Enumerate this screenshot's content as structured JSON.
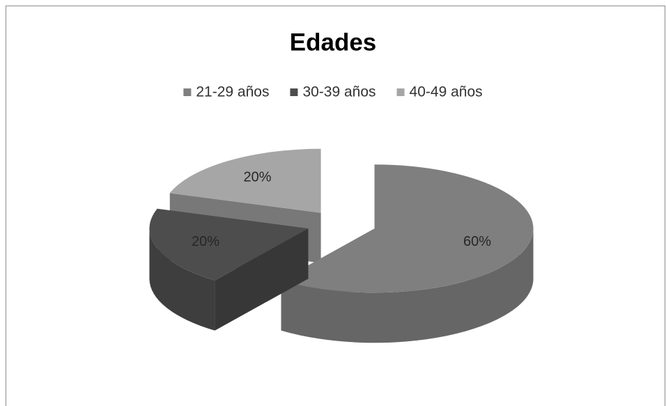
{
  "chart_data": {
    "type": "pie",
    "title": "Edades",
    "categories": [
      "21-29 años",
      "30-39 años",
      "40-49 años"
    ],
    "values": [
      60,
      20,
      20
    ],
    "value_labels": [
      "60%",
      "20%",
      "20%"
    ],
    "colors": [
      "#7f7f7f",
      "#4d4d4d",
      "#a6a6a6"
    ],
    "legend": "top"
  }
}
